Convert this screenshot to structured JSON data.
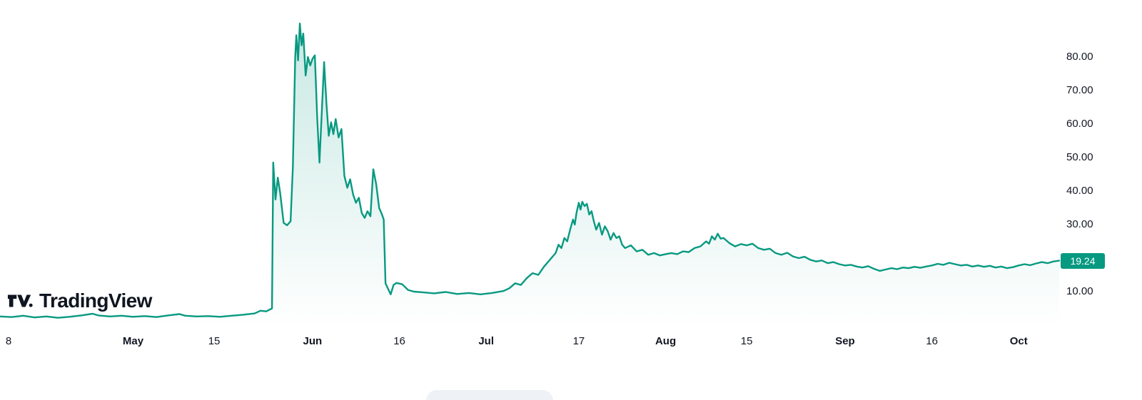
{
  "branding": {
    "logo_text": "TradingView"
  },
  "price_scale": {
    "last_label": "19.24",
    "badge_color": "#089981",
    "badge_text_color": "#ffffff"
  },
  "colors": {
    "line": "#089981",
    "background": "#ffffff",
    "axis_text": "#131722"
  },
  "chart_data": {
    "type": "area",
    "title": "",
    "xlabel": "",
    "ylabel": "",
    "x_domain": [
      0,
      183
    ],
    "x_unit": "days (Apr 8 to Oct 8)",
    "ylim": [
      0,
      95
    ],
    "grid": false,
    "legend": null,
    "last_value": 19.24,
    "y_ticks": [
      {
        "value": 80,
        "label": "80.00"
      },
      {
        "value": 70,
        "label": "70.00"
      },
      {
        "value": 60,
        "label": "60.00"
      },
      {
        "value": 50,
        "label": "50.00"
      },
      {
        "value": 40,
        "label": "40.00"
      },
      {
        "value": 30,
        "label": "30.00"
      },
      {
        "value": 10,
        "label": "10.00"
      }
    ],
    "x_ticks": [
      {
        "t": 0,
        "label": "8",
        "bold": false
      },
      {
        "t": 23,
        "label": "May",
        "bold": true
      },
      {
        "t": 37,
        "label": "15",
        "bold": false
      },
      {
        "t": 54,
        "label": "Jun",
        "bold": true
      },
      {
        "t": 69,
        "label": "16",
        "bold": false
      },
      {
        "t": 84,
        "label": "Jul",
        "bold": true
      },
      {
        "t": 100,
        "label": "17",
        "bold": false
      },
      {
        "t": 115,
        "label": "Aug",
        "bold": true
      },
      {
        "t": 129,
        "label": "15",
        "bold": false
      },
      {
        "t": 146,
        "label": "Sep",
        "bold": true
      },
      {
        "t": 161,
        "label": "16",
        "bold": false
      },
      {
        "t": 176,
        "label": "Oct",
        "bold": true
      }
    ],
    "series": [
      {
        "name": "price",
        "color": "#089981",
        "points": [
          [
            0,
            2.6
          ],
          [
            2,
            2.4
          ],
          [
            4,
            2.8
          ],
          [
            6,
            2.3
          ],
          [
            8,
            2.6
          ],
          [
            10,
            2.2
          ],
          [
            12,
            2.5
          ],
          [
            14,
            2.9
          ],
          [
            16,
            3.4
          ],
          [
            17,
            2.9
          ],
          [
            19,
            2.6
          ],
          [
            21,
            2.8
          ],
          [
            23,
            2.5
          ],
          [
            25,
            2.7
          ],
          [
            27,
            2.4
          ],
          [
            29,
            2.9
          ],
          [
            31,
            3.3
          ],
          [
            32,
            2.8
          ],
          [
            34,
            2.6
          ],
          [
            36,
            2.7
          ],
          [
            38,
            2.5
          ],
          [
            40,
            2.8
          ],
          [
            42,
            3.1
          ],
          [
            44,
            3.5
          ],
          [
            45,
            4.3
          ],
          [
            46,
            4.1
          ],
          [
            47,
            5
          ],
          [
            47.2,
            48.5
          ],
          [
            47.6,
            37.5
          ],
          [
            48,
            44
          ],
          [
            48.4,
            39.5
          ],
          [
            49,
            30.5
          ],
          [
            49.6,
            29.8
          ],
          [
            50.2,
            31
          ],
          [
            50.6,
            47
          ],
          [
            51,
            80
          ],
          [
            51.2,
            86.5
          ],
          [
            51.5,
            79
          ],
          [
            51.8,
            90
          ],
          [
            52.1,
            83.5
          ],
          [
            52.4,
            87
          ],
          [
            52.8,
            74.5
          ],
          [
            53.2,
            80
          ],
          [
            53.6,
            77.5
          ],
          [
            54,
            79.5
          ],
          [
            54.4,
            80.5
          ],
          [
            54.8,
            62
          ],
          [
            55.2,
            48.5
          ],
          [
            55.6,
            64
          ],
          [
            56,
            78.5
          ],
          [
            56.4,
            66
          ],
          [
            56.8,
            56.5
          ],
          [
            57.2,
            60.5
          ],
          [
            57.6,
            57
          ],
          [
            58,
            61.5
          ],
          [
            58.5,
            56
          ],
          [
            59,
            58.5
          ],
          [
            59.5,
            44.5
          ],
          [
            60,
            41
          ],
          [
            60.5,
            43.5
          ],
          [
            61,
            39
          ],
          [
            61.5,
            36.5
          ],
          [
            62,
            38
          ],
          [
            62.5,
            33.5
          ],
          [
            63,
            32
          ],
          [
            63.5,
            34
          ],
          [
            64,
            32.5
          ],
          [
            64.5,
            46.5
          ],
          [
            65,
            42
          ],
          [
            65.5,
            35
          ],
          [
            66,
            33
          ],
          [
            66.3,
            31.5
          ],
          [
            66.6,
            12.5
          ],
          [
            67,
            11
          ],
          [
            67.5,
            9.2
          ],
          [
            68,
            12
          ],
          [
            68.5,
            12.6
          ],
          [
            69.5,
            12.2
          ],
          [
            70.5,
            10.5
          ],
          [
            71.5,
            10
          ],
          [
            73,
            9.8
          ],
          [
            75,
            9.5
          ],
          [
            77,
            9.9
          ],
          [
            79,
            9.3
          ],
          [
            81,
            9.6
          ],
          [
            83,
            9.2
          ],
          [
            85,
            9.6
          ],
          [
            87,
            10.2
          ],
          [
            88,
            11
          ],
          [
            89,
            12.5
          ],
          [
            90,
            12
          ],
          [
            91,
            14
          ],
          [
            92,
            15.5
          ],
          [
            93,
            15
          ],
          [
            94,
            17.5
          ],
          [
            95,
            19.5
          ],
          [
            96,
            21.5
          ],
          [
            96.5,
            24
          ],
          [
            97,
            23
          ],
          [
            97.5,
            26
          ],
          [
            98,
            25
          ],
          [
            98.5,
            28.5
          ],
          [
            99,
            31.5
          ],
          [
            99.3,
            30
          ],
          [
            99.6,
            33.5
          ],
          [
            100,
            36.5
          ],
          [
            100.3,
            34.5
          ],
          [
            100.6,
            36.8
          ],
          [
            101,
            35.5
          ],
          [
            101.4,
            36.2
          ],
          [
            101.8,
            33
          ],
          [
            102.2,
            34
          ],
          [
            102.6,
            31
          ],
          [
            103,
            28.5
          ],
          [
            103.5,
            30.5
          ],
          [
            104,
            27
          ],
          [
            104.5,
            29.5
          ],
          [
            105,
            28
          ],
          [
            105.5,
            25.5
          ],
          [
            106,
            27.5
          ],
          [
            106.5,
            26
          ],
          [
            107,
            26.5
          ],
          [
            107.5,
            24
          ],
          [
            108,
            23
          ],
          [
            109,
            23.8
          ],
          [
            110,
            22
          ],
          [
            111,
            22.5
          ],
          [
            112,
            21
          ],
          [
            113,
            21.5
          ],
          [
            114,
            20.8
          ],
          [
            115,
            21.2
          ],
          [
            116,
            21.5
          ],
          [
            117,
            21.2
          ],
          [
            118,
            22
          ],
          [
            119,
            21.8
          ],
          [
            120,
            23
          ],
          [
            121,
            23.5
          ],
          [
            122,
            25
          ],
          [
            122.5,
            24.3
          ],
          [
            123,
            26.5
          ],
          [
            123.5,
            25.5
          ],
          [
            124,
            27.3
          ],
          [
            124.5,
            25.8
          ],
          [
            125,
            26
          ],
          [
            126,
            24.5
          ],
          [
            127,
            23.5
          ],
          [
            128,
            24.2
          ],
          [
            129,
            23.8
          ],
          [
            130,
            24.3
          ],
          [
            131,
            23
          ],
          [
            132,
            22.5
          ],
          [
            133,
            22.8
          ],
          [
            134,
            21.5
          ],
          [
            135,
            21
          ],
          [
            136,
            21.6
          ],
          [
            137,
            20.5
          ],
          [
            138,
            20
          ],
          [
            139,
            20.4
          ],
          [
            140,
            19.5
          ],
          [
            141,
            19
          ],
          [
            142,
            19.3
          ],
          [
            143,
            18.5
          ],
          [
            144,
            18.8
          ],
          [
            145,
            18.2
          ],
          [
            146,
            17.8
          ],
          [
            147,
            18
          ],
          [
            148,
            17.5
          ],
          [
            149,
            17.2
          ],
          [
            150,
            17.6
          ],
          [
            151,
            16.8
          ],
          [
            152,
            16.2
          ],
          [
            153,
            16.6
          ],
          [
            154,
            17
          ],
          [
            155,
            16.7
          ],
          [
            156,
            17.2
          ],
          [
            157,
            17
          ],
          [
            158,
            17.4
          ],
          [
            159,
            17.1
          ],
          [
            160,
            17.5
          ],
          [
            161,
            17.8
          ],
          [
            162,
            18.3
          ],
          [
            163,
            18
          ],
          [
            164,
            18.6
          ],
          [
            165,
            18.2
          ],
          [
            166,
            17.8
          ],
          [
            167,
            18
          ],
          [
            168,
            17.5
          ],
          [
            169,
            17.8
          ],
          [
            170,
            17.4
          ],
          [
            171,
            17.7
          ],
          [
            172,
            17.2
          ],
          [
            173,
            17.5
          ],
          [
            174,
            17
          ],
          [
            175,
            17.3
          ],
          [
            176,
            17.8
          ],
          [
            177,
            18.2
          ],
          [
            178,
            17.9
          ],
          [
            179,
            18.4
          ],
          [
            180,
            18.8
          ],
          [
            181,
            18.5
          ],
          [
            182,
            19
          ],
          [
            183,
            19.24
          ]
        ]
      }
    ]
  }
}
